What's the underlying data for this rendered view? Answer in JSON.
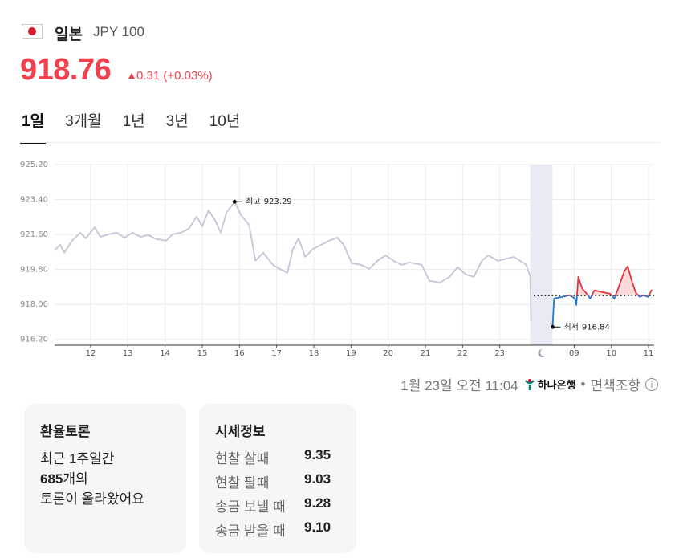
{
  "header": {
    "country": "일본",
    "currency": "JPY 100"
  },
  "price": {
    "value": "918.76",
    "change": "0.31",
    "change_percent": "(+0.03%)"
  },
  "tabs": [
    "1일",
    "3개월",
    "1년",
    "3년",
    "10년"
  ],
  "active_tab": 0,
  "chart_data": {
    "type": "line",
    "xlim": [
      11.03,
      27.15
    ],
    "ylim": [
      915.9,
      925.2
    ],
    "xticks": [
      12,
      13,
      14,
      15,
      16,
      17,
      18,
      19,
      20,
      21,
      22,
      23,
      {
        "value": 25,
        "label": "09"
      },
      {
        "value": 26,
        "label": "10"
      },
      {
        "value": 27,
        "label": "11"
      }
    ],
    "yticks": [
      {
        "value": 925.2,
        "label": "925.20"
      },
      {
        "value": 923.4,
        "label": "923.40"
      },
      {
        "value": 921.6,
        "label": "921.60"
      },
      {
        "value": 919.8,
        "label": "919.80"
      },
      {
        "value": 918.0,
        "label": "918.00"
      },
      {
        "value": 916.2,
        "label": "916.20"
      }
    ],
    "grid": true,
    "reference_line": 918.45,
    "series": [
      {
        "color": "#c3c5d8",
        "x": [
          11.03,
          11.18,
          11.29,
          11.5,
          11.72,
          11.87,
          12.11,
          12.26,
          12.48,
          12.7,
          12.91,
          13.13,
          13.34,
          13.56,
          13.77,
          14.03,
          14.2,
          14.42,
          14.64,
          14.85,
          15.0,
          15.17,
          15.35,
          15.5,
          15.65,
          15.87,
          16.04,
          16.26,
          16.43,
          16.64,
          16.9,
          17.08,
          17.29,
          17.44,
          17.59,
          17.77,
          17.98,
          18.2,
          18.41,
          18.63,
          18.8,
          19.02,
          19.28,
          19.49,
          19.71,
          19.93,
          20.14,
          20.36,
          20.57,
          20.9,
          21.11,
          21.4,
          21.65,
          21.87,
          22.09,
          22.3,
          22.52,
          22.69,
          22.95,
          23.21,
          23.38,
          23.71,
          23.82,
          23.84
        ],
        "values": [
          920.78,
          921.07,
          920.66,
          921.28,
          921.69,
          921.4,
          921.98,
          921.48,
          921.61,
          921.69,
          921.44,
          921.69,
          921.48,
          921.57,
          921.36,
          921.28,
          921.61,
          921.69,
          921.9,
          922.52,
          922.02,
          922.85,
          922.31,
          921.69,
          922.72,
          923.29,
          922.6,
          922.1,
          920.25,
          920.66,
          920.04,
          919.83,
          919.63,
          920.86,
          921.4,
          920.45,
          920.86,
          921.07,
          921.28,
          921.44,
          921.07,
          920.12,
          920.04,
          919.83,
          920.25,
          920.53,
          920.25,
          920.04,
          920.16,
          920.04,
          919.21,
          919.13,
          919.42,
          919.92,
          919.54,
          919.42,
          920.25,
          920.53,
          920.25,
          920.37,
          920.45,
          920.04,
          919.42,
          917.15
        ]
      },
      {
        "color": "#e8333f",
        "color_down": "#1f78d1",
        "x": [
          24.42,
          24.46,
          24.68,
          24.89,
          25.02,
          25.06,
          25.11,
          25.22,
          25.32,
          25.43,
          25.54,
          25.75,
          25.97,
          26.08,
          26.18,
          26.35,
          26.44,
          26.55,
          26.66,
          26.76,
          26.87,
          26.98,
          27.09
        ],
        "values": [
          916.84,
          918.3,
          918.39,
          918.47,
          918.3,
          917.97,
          919.42,
          918.8,
          918.59,
          918.3,
          918.72,
          918.64,
          918.55,
          918.3,
          918.8,
          919.71,
          919.96,
          919.21,
          918.59,
          918.39,
          918.47,
          918.39,
          918.76
        ]
      }
    ],
    "annotations": [
      {
        "label": "최고",
        "value": 923.29,
        "x": 15.87
      },
      {
        "label": "최저",
        "value": 916.84,
        "x": 24.42
      }
    ]
  },
  "footer": {
    "timestamp": "1월 23일 오전 11:04",
    "bank": "하나은행",
    "separator": "•",
    "disclaimer": "면책조항"
  },
  "discussion": {
    "title": "환율토론",
    "line1": "최근 1주일간",
    "count": "685",
    "count_suffix": "개의",
    "line3": "토론이 올라왔어요"
  },
  "quotes": {
    "title": "시세정보",
    "rows": [
      [
        "현찰 살때",
        "9.35"
      ],
      [
        "현찰 팔때",
        "9.03"
      ],
      [
        "송금 보낼 때",
        "9.28"
      ],
      [
        "송금 받을 때",
        "9.10"
      ]
    ]
  }
}
